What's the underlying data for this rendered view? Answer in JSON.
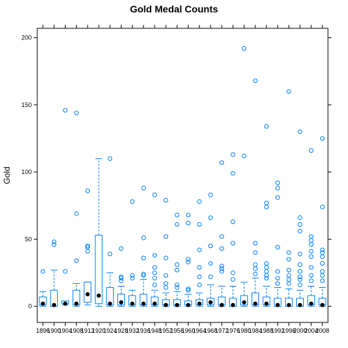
{
  "chart_data": {
    "type": "box",
    "title": "Gold Medal Counts",
    "xlabel": "",
    "ylabel": "Gold",
    "ylim": [
      -12,
      207
    ],
    "yticks": [
      0,
      50,
      100,
      150,
      200
    ],
    "grid": false,
    "colors": {
      "box": "#0080ff",
      "median_dot": "#000000",
      "axis": "#000000"
    },
    "categories": [
      "1896",
      "1900",
      "1904",
      "1908",
      "1912",
      "1920",
      "1924",
      "1928",
      "1932",
      "1936",
      "1948",
      "1952",
      "1956",
      "1960",
      "1964",
      "1968",
      "1972",
      "1976",
      "1980",
      "1984",
      "1988",
      "1992",
      "1996",
      "2000",
      "2004",
      "2008"
    ],
    "boxes": [
      {
        "year": "1896",
        "q1": 1,
        "median": 2,
        "q3": 7,
        "wlow": 0,
        "whigh": 11,
        "outliers": [
          26
        ]
      },
      {
        "year": "1900",
        "q1": 0,
        "median": 1,
        "q3": 12,
        "wlow": 0,
        "whigh": 27,
        "outliers": [
          46,
          48
        ]
      },
      {
        "year": "1904",
        "q1": 2,
        "median": 2,
        "q3": 4,
        "wlow": 1,
        "whigh": 4,
        "outliers": [
          26,
          146
        ]
      },
      {
        "year": "1908",
        "q1": 1,
        "median": 2,
        "q3": 12,
        "wlow": 0,
        "whigh": 17,
        "outliers": [
          34,
          69,
          144
        ]
      },
      {
        "year": "1912",
        "q1": 3,
        "median": 9,
        "q3": 18,
        "wlow": 1,
        "whigh": 18,
        "outliers": [
          41,
          44,
          45,
          86
        ]
      },
      {
        "year": "1920",
        "q1": 2,
        "median": 8,
        "q3": 53,
        "wlow": 0,
        "whigh": 110,
        "outliers": []
      },
      {
        "year": "1924",
        "q1": 1,
        "median": 2,
        "q3": 14,
        "wlow": 0,
        "whigh": 25,
        "outliers": [
          39,
          110
        ]
      },
      {
        "year": "1928",
        "q1": 1,
        "median": 3,
        "q3": 9,
        "wlow": 0,
        "whigh": 15,
        "outliers": [
          19,
          21,
          22,
          43
        ]
      },
      {
        "year": "1932",
        "q1": 1,
        "median": 2,
        "q3": 8,
        "wlow": 0,
        "whigh": 12,
        "outliers": [
          21,
          23,
          78
        ]
      },
      {
        "year": "1936",
        "q1": 1,
        "median": 2,
        "q3": 9,
        "wlow": 0,
        "whigh": 20,
        "outliers": [
          23,
          24,
          36,
          51,
          88
        ]
      },
      {
        "year": "1948",
        "q1": 1,
        "median": 2,
        "q3": 7,
        "wlow": 0,
        "whigh": 12,
        "outliers": [
          16,
          21,
          25,
          29,
          38,
          83
        ]
      },
      {
        "year": "1952",
        "q1": 1,
        "median": 1,
        "q3": 5,
        "wlow": 0,
        "whigh": 10,
        "outliers": [
          14,
          17,
          23,
          36,
          52,
          79
        ]
      },
      {
        "year": "1956",
        "q1": 1,
        "median": 1,
        "q3": 5,
        "wlow": 0,
        "whigh": 11,
        "outliers": [
          14,
          16,
          27,
          31,
          61,
          68
        ]
      },
      {
        "year": "1960",
        "q1": 1,
        "median": 1,
        "q3": 4,
        "wlow": 0,
        "whigh": 9,
        "outliers": [
          12,
          13,
          33,
          35,
          62,
          68
        ]
      },
      {
        "year": "1964",
        "q1": 1,
        "median": 2,
        "q3": 5,
        "wlow": 0,
        "whigh": 10,
        "outliers": [
          16,
          22,
          29,
          42,
          61,
          78
        ]
      },
      {
        "year": "1968",
        "q1": 1,
        "median": 3,
        "q3": 6,
        "wlow": 0,
        "whigh": 16,
        "outliers": [
          22,
          32,
          45,
          66,
          83
        ]
      },
      {
        "year": "1972",
        "q1": 1,
        "median": 1,
        "q3": 7,
        "wlow": 0,
        "whigh": 15,
        "outliers": [
          26,
          28,
          30,
          43,
          52,
          107
        ]
      },
      {
        "year": "1976",
        "q1": 0,
        "median": 1,
        "q3": 6,
        "wlow": 0,
        "whigh": 15,
        "outliers": [
          20,
          25,
          47,
          63,
          99,
          113
        ]
      },
      {
        "year": "1980",
        "q1": 1,
        "median": 3,
        "q3": 8,
        "wlow": 0,
        "whigh": 18,
        "outliers": [
          112,
          192
        ]
      },
      {
        "year": "1984",
        "q1": 1,
        "median": 2,
        "q3": 10,
        "wlow": 0,
        "whigh": 21,
        "outliers": [
          24,
          28,
          31,
          40,
          47,
          168
        ]
      },
      {
        "year": "1988",
        "q1": 1,
        "median": 2,
        "q3": 7,
        "wlow": 0,
        "whigh": 15,
        "outliers": [
          21,
          23,
          26,
          29,
          32,
          74,
          77,
          134
        ]
      },
      {
        "year": "1992",
        "q1": 0,
        "median": 1,
        "q3": 6,
        "wlow": 0,
        "whigh": 14,
        "outliers": [
          17,
          21,
          26,
          44,
          81,
          88,
          92
        ]
      },
      {
        "year": "1996",
        "q1": 0,
        "median": 1,
        "q3": 6,
        "wlow": 0,
        "whigh": 13,
        "outliers": [
          17,
          20,
          23,
          27,
          35,
          40,
          160
        ]
      },
      {
        "year": "2000",
        "q1": 0,
        "median": 1,
        "q3": 6,
        "wlow": 0,
        "whigh": 12,
        "outliers": [
          16,
          20,
          22,
          26,
          31,
          39,
          56,
          61,
          66,
          130
        ]
      },
      {
        "year": "2004",
        "q1": 1,
        "median": 2,
        "q3": 8,
        "wlow": 0,
        "whigh": 15,
        "outliers": [
          19,
          23,
          29,
          37,
          41,
          46,
          49,
          52,
          116
        ]
      },
      {
        "year": "2008",
        "q1": 1,
        "median": 1,
        "q3": 6,
        "wlow": 0,
        "whigh": 14,
        "outliers": [
          19,
          23,
          26,
          32,
          37,
          40,
          42,
          74,
          125
        ]
      }
    ]
  }
}
